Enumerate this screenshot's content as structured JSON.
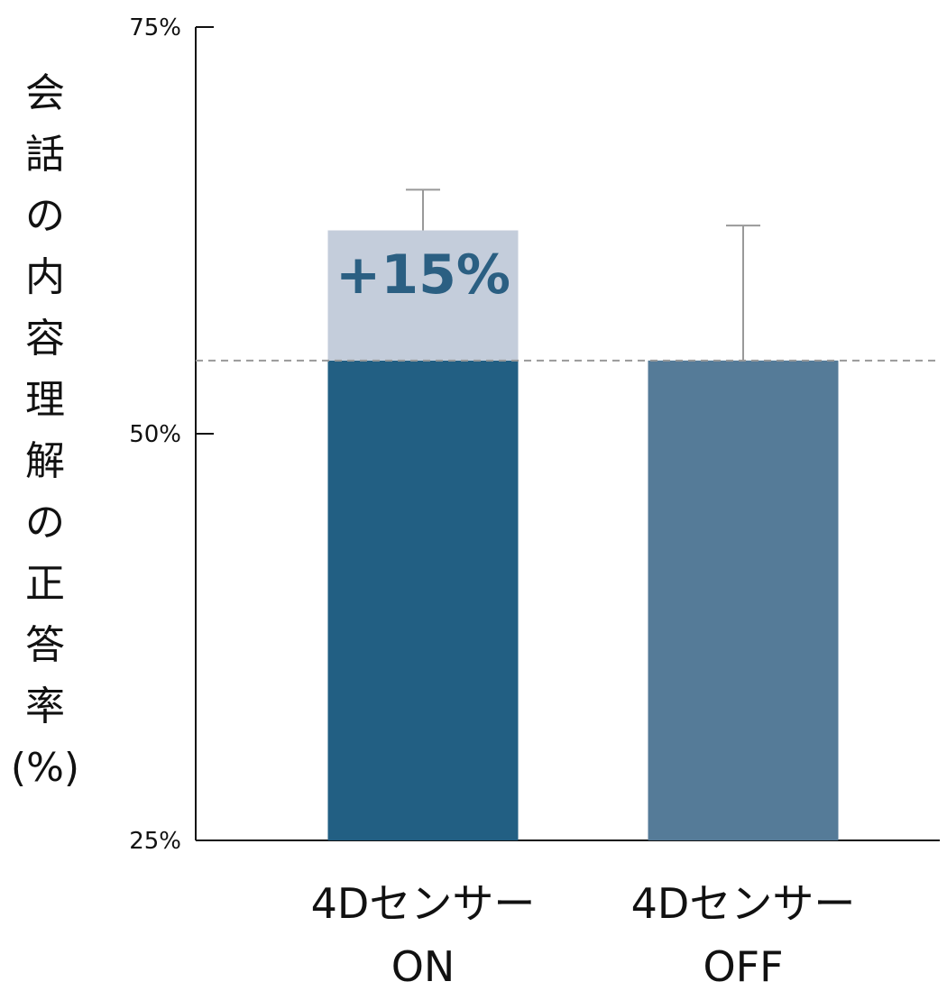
{
  "chart_data": {
    "type": "bar",
    "categories": [
      {
        "line1": "4Dセンサー",
        "line2": "ON"
      },
      {
        "line1": "4Dセンサー",
        "line2": "OFF"
      }
    ],
    "values": [
      62.5,
      54.5
    ],
    "baseline_value": 54.5,
    "error_upper": [
      65,
      62.8
    ],
    "ylabel_chars": [
      "会",
      "話",
      "の",
      "内",
      "容",
      "理",
      "解",
      "の",
      "正",
      "答",
      "率",
      "(%)"
    ],
    "yticks": [
      25,
      50,
      75
    ],
    "ytick_labels": [
      "25%",
      "50%",
      "75%"
    ],
    "ylim": [
      25,
      75
    ],
    "annotation": "+15%",
    "colors": {
      "on_bar": "#225f83",
      "on_increment": "#c4cddb",
      "off_bar": "#557b98",
      "error_bar": "#999999",
      "annotation": "#2b5f82",
      "baseline": "#999999",
      "axis": "#111111"
    }
  }
}
